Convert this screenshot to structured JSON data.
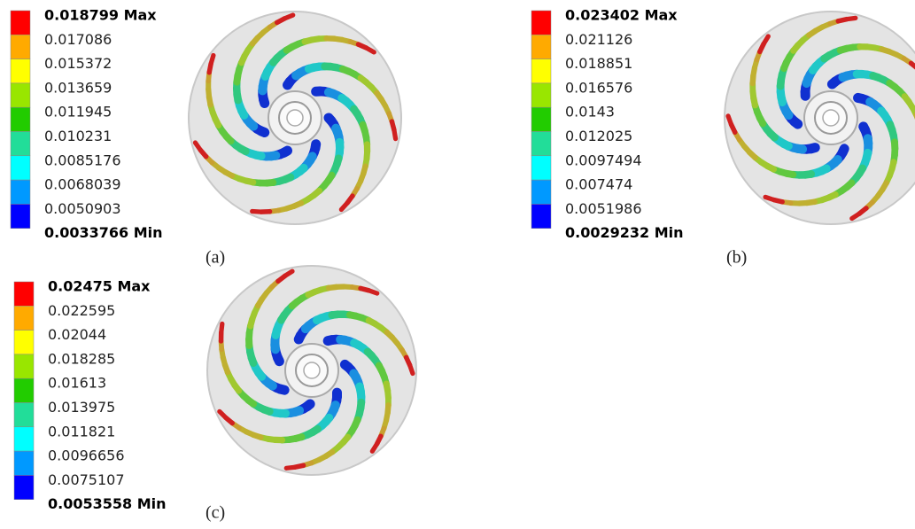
{
  "panels": [
    {
      "label": "(a)",
      "legend": [
        "0.018799 Max",
        "0.017086",
        "0.015372",
        "0.013659",
        "0.011945",
        "0.010231",
        "0.0085176",
        "0.0068039",
        "0.0050903",
        "0.0033766 Min"
      ]
    },
    {
      "label": "(b)",
      "legend": [
        "0.023402 Max",
        "0.021126",
        "0.018851",
        "0.016576",
        "0.0143",
        "0.012025",
        "0.0097494",
        "0.007474",
        "0.0051986",
        "0.0029232 Min"
      ]
    },
    {
      "label": "(c)",
      "legend": [
        "0.02475 Max",
        "0.022595",
        "0.02044",
        "0.018285",
        "0.01613",
        "0.013975",
        "0.011821",
        "0.0096656",
        "0.0075107",
        "0.0053558 Min"
      ]
    }
  ]
}
